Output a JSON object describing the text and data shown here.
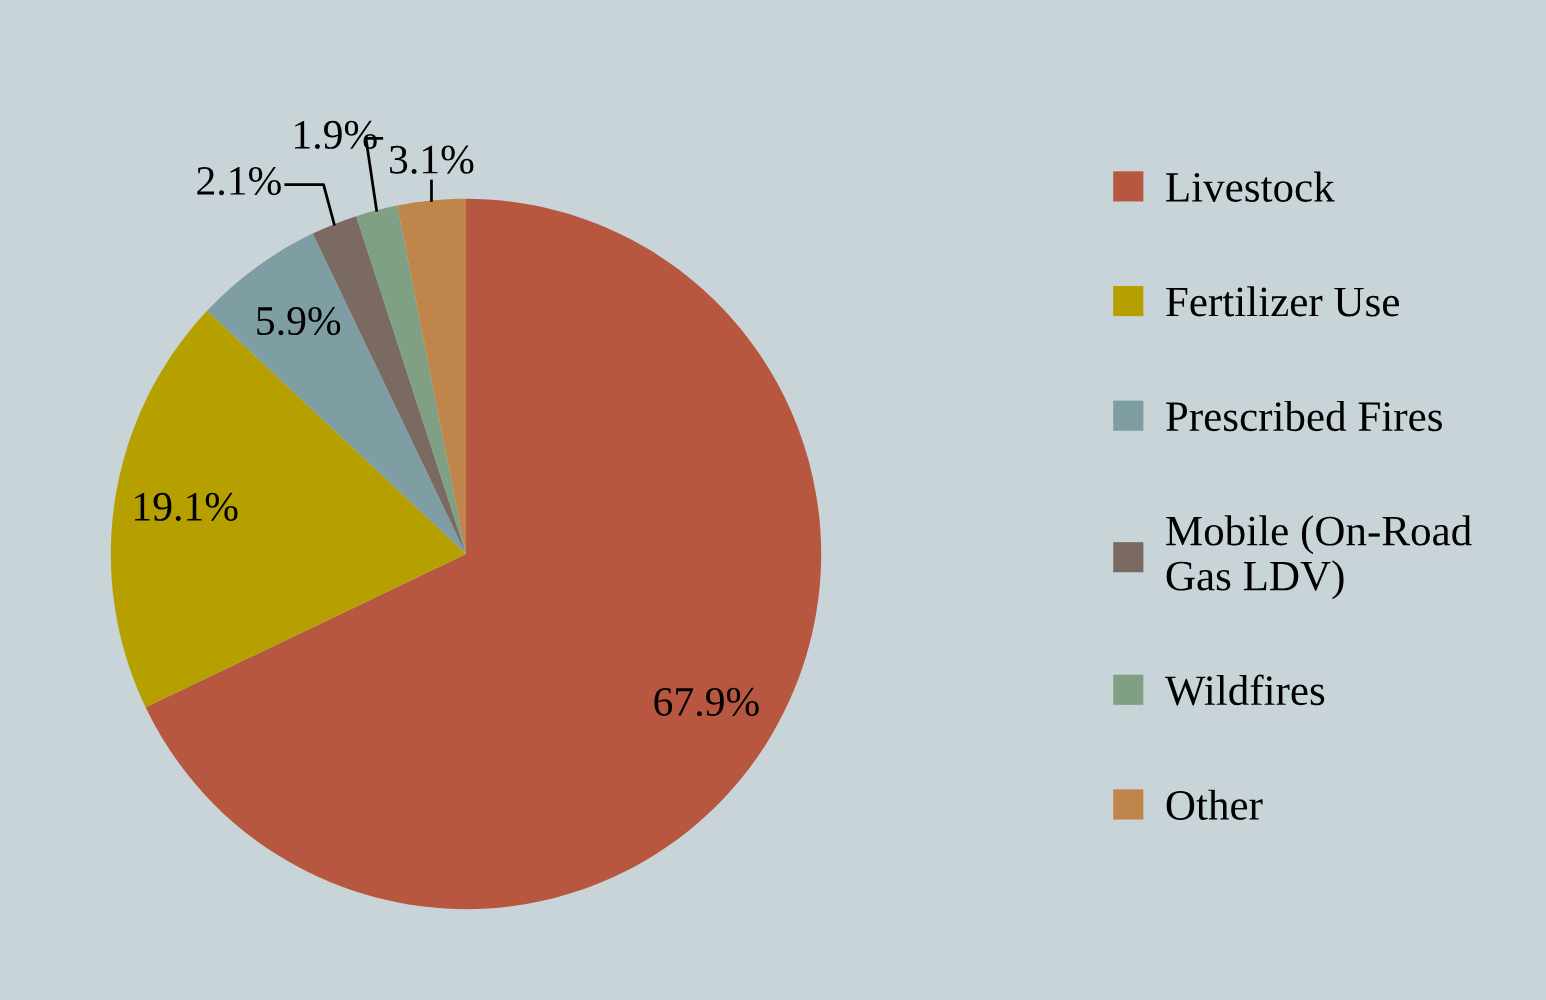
{
  "chart_data": {
    "type": "pie",
    "categories": [
      "Livestock",
      "Fertilizer Use",
      "Prescribed Fires",
      "Mobile (On-Road Gas LDV)",
      "Wildfires",
      "Other"
    ],
    "values": [
      67.9,
      19.1,
      5.9,
      2.1,
      1.9,
      3.1
    ],
    "value_labels": [
      "67.9%",
      "19.1%",
      "5.9%",
      "2.1%",
      "1.9%",
      "3.1%"
    ],
    "colors": [
      "#b85740",
      "#b5a000",
      "#7f9ea3",
      "#7a6a62",
      "#7fa083",
      "#c0854a"
    ],
    "legend": "right"
  }
}
